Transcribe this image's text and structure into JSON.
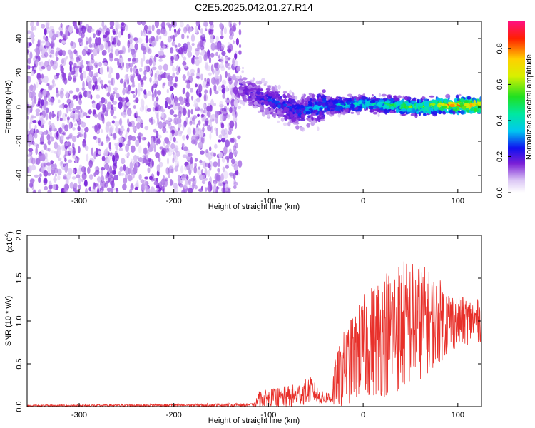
{
  "title": "C2E5.2025.042.01.27.R14",
  "chart_data": [
    {
      "type": "heatmap",
      "xlabel": "Height of straight line (km)",
      "ylabel": "Frequency (Hz)",
      "xlim": [
        -355,
        125
      ],
      "ylim": [
        -50,
        50
      ],
      "x_ticks": [
        -300,
        -200,
        -100,
        0,
        100
      ],
      "y_ticks": [
        -40,
        -20,
        0,
        20,
        40
      ],
      "colorbar": {
        "label": "Normalized spectral amplitude",
        "range": [
          0,
          0.95
        ],
        "ticks": [
          0.0,
          0.2,
          0.4,
          0.6,
          0.8
        ],
        "tick_labels": [
          "0.0",
          "0.2",
          "0.4",
          "0.6",
          "0.8"
        ],
        "colormap": "rainbow (white-violet-blue-cyan-green-yellow-red-magenta)"
      },
      "features": {
        "noise_region_x": [
          -355,
          -130
        ],
        "noise_amplitude": 0.12,
        "signal_track": [
          {
            "x": -130,
            "y": 12,
            "amp": 0.2
          },
          {
            "x": -110,
            "y": 5,
            "amp": 0.25
          },
          {
            "x": -90,
            "y": 2,
            "amp": 0.3
          },
          {
            "x": -70,
            "y": -3,
            "amp": 0.3
          },
          {
            "x": -50,
            "y": 0,
            "amp": 0.35
          },
          {
            "x": -30,
            "y": 1,
            "amp": 0.4
          },
          {
            "x": 0,
            "y": 2,
            "amp": 0.45
          },
          {
            "x": 30,
            "y": 1,
            "amp": 0.55
          },
          {
            "x": 60,
            "y": 0,
            "amp": 0.65
          },
          {
            "x": 90,
            "y": 1,
            "amp": 0.8
          },
          {
            "x": 125,
            "y": 1,
            "amp": 0.9
          }
        ]
      }
    },
    {
      "type": "line",
      "xlabel": "Height of straight line (km)",
      "ylabel": "SNR (10 * v/v)",
      "y_multiplier_label": "(x10",
      "y_multiplier_exp": "4",
      "y_multiplier_close": ")",
      "xlim": [
        -355,
        125
      ],
      "ylim": [
        0,
        2.0
      ],
      "x_ticks": [
        -300,
        -200,
        -100,
        0,
        100
      ],
      "y_ticks": [
        0.0,
        0.5,
        1.0,
        1.5,
        2.0
      ],
      "y_tick_labels": [
        "0.0",
        "0.5",
        "1.0",
        "1.5",
        "2.0"
      ],
      "series": [
        {
          "color": "#e8302a",
          "envelope": [
            {
              "x": -355,
              "base": 0.01,
              "amp": 0.01
            },
            {
              "x": -115,
              "base": 0.02,
              "amp": 0.02
            },
            {
              "x": -110,
              "base": 0.08,
              "amp": 0.1
            },
            {
              "x": -90,
              "base": 0.1,
              "amp": 0.12
            },
            {
              "x": -70,
              "base": 0.13,
              "amp": 0.14
            },
            {
              "x": -55,
              "base": 0.2,
              "amp": 0.15
            },
            {
              "x": -45,
              "base": 0.1,
              "amp": 0.08
            },
            {
              "x": -35,
              "base": 0.1,
              "amp": 0.08
            },
            {
              "x": -30,
              "base": 0.25,
              "amp": 0.3
            },
            {
              "x": -20,
              "base": 0.45,
              "amp": 0.45
            },
            {
              "x": 0,
              "base": 0.7,
              "amp": 0.6
            },
            {
              "x": 20,
              "base": 0.85,
              "amp": 0.75
            },
            {
              "x": 40,
              "base": 0.95,
              "amp": 0.8
            },
            {
              "x": 60,
              "base": 1.0,
              "amp": 0.7
            },
            {
              "x": 80,
              "base": 1.0,
              "amp": 0.5
            },
            {
              "x": 100,
              "base": 1.0,
              "amp": 0.3
            },
            {
              "x": 125,
              "base": 1.0,
              "amp": 0.25
            }
          ]
        }
      ]
    }
  ]
}
